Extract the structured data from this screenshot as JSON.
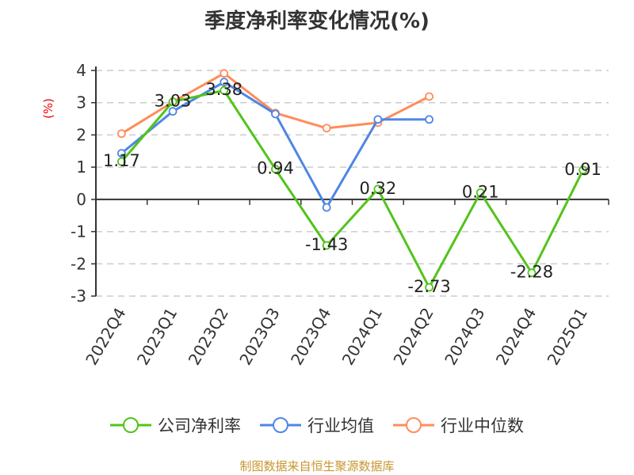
{
  "chart_data": {
    "type": "line",
    "title": "季度净利率变化情况(%)",
    "ylabel": "(%)",
    "xlabel": "",
    "ylim": [
      -3,
      4
    ],
    "yticks": [
      -3,
      -2,
      -1,
      0,
      1,
      2,
      3,
      4
    ],
    "grid": true,
    "legend_position": "bottom",
    "categories": [
      "2022Q4",
      "2023Q1",
      "2023Q2",
      "2023Q3",
      "2023Q4",
      "2024Q1",
      "2024Q2",
      "2024Q3",
      "2024Q4",
      "2025Q1"
    ],
    "series": [
      {
        "name": "公司净利率",
        "color": "#52c41a",
        "labeled": true,
        "values": [
          1.17,
          3.03,
          3.38,
          0.94,
          -1.43,
          0.32,
          -2.73,
          0.21,
          -2.28,
          0.91
        ]
      },
      {
        "name": "行业均值",
        "color": "#4e86e4",
        "labeled": false,
        "values": [
          1.43,
          2.73,
          3.64,
          2.65,
          -0.25,
          2.48,
          2.48,
          null,
          null,
          null
        ]
      },
      {
        "name": "行业中位数",
        "color": "#ff8c5a",
        "labeled": false,
        "values": [
          2.04,
          3.02,
          3.91,
          2.68,
          2.21,
          2.38,
          3.19,
          null,
          null,
          null
        ]
      }
    ]
  },
  "footer": "制图数据来自恒生聚源数据库"
}
